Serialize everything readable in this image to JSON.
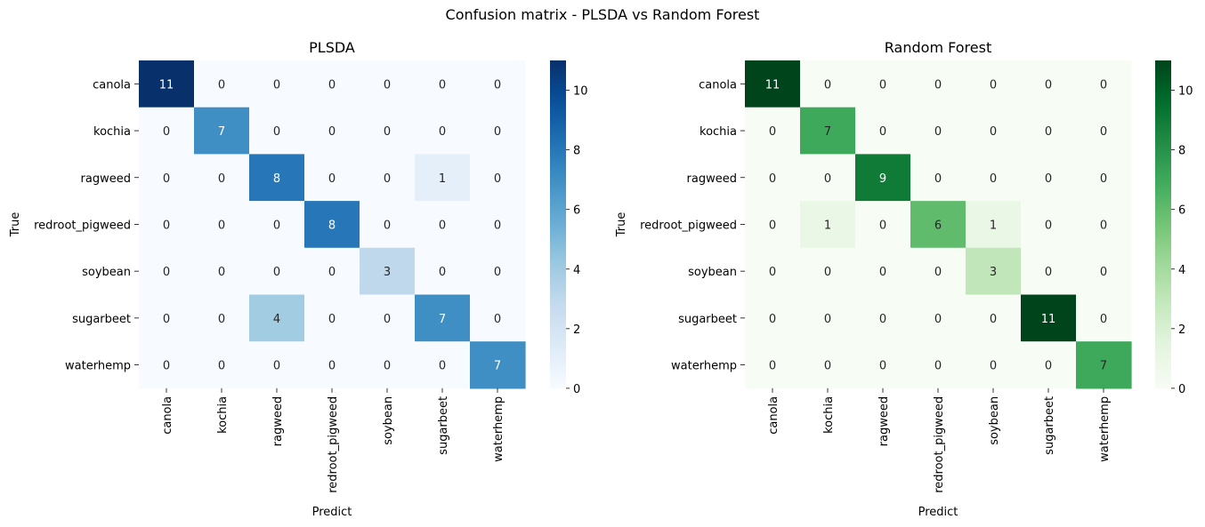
{
  "figure": {
    "suptitle": "Confusion matrix - PLSDA vs Random Forest"
  },
  "chart_data": [
    {
      "type": "heatmap",
      "title": "PLSDA",
      "xlabel": "Predict",
      "ylabel": "True",
      "x_categories": [
        "canola",
        "kochia",
        "ragweed",
        "redroot_pigweed",
        "soybean",
        "sugarbeet",
        "waterhemp"
      ],
      "y_categories": [
        "canola",
        "kochia",
        "ragweed",
        "redroot_pigweed",
        "soybean",
        "sugarbeet",
        "waterhemp"
      ],
      "matrix": [
        [
          11,
          0,
          0,
          0,
          0,
          0,
          0
        ],
        [
          0,
          7,
          0,
          0,
          0,
          0,
          0
        ],
        [
          0,
          0,
          8,
          0,
          0,
          1,
          0
        ],
        [
          0,
          0,
          0,
          8,
          0,
          0,
          0
        ],
        [
          0,
          0,
          0,
          0,
          3,
          0,
          0
        ],
        [
          0,
          0,
          4,
          0,
          0,
          7,
          0
        ],
        [
          0,
          0,
          0,
          0,
          0,
          0,
          7
        ]
      ],
      "colormap": "Blues",
      "colorbar_range": [
        0,
        11
      ],
      "colorbar_ticks": [
        0,
        2,
        4,
        6,
        8,
        10
      ]
    },
    {
      "type": "heatmap",
      "title": "Random Forest",
      "xlabel": "Predict",
      "ylabel": "True",
      "x_categories": [
        "canola",
        "kochia",
        "ragweed",
        "redroot_pigweed",
        "soybean",
        "sugarbeet",
        "waterhemp"
      ],
      "y_categories": [
        "canola",
        "kochia",
        "ragweed",
        "redroot_pigweed",
        "soybean",
        "sugarbeet",
        "waterhemp"
      ],
      "matrix": [
        [
          11,
          0,
          0,
          0,
          0,
          0,
          0
        ],
        [
          0,
          7,
          0,
          0,
          0,
          0,
          0
        ],
        [
          0,
          0,
          9,
          0,
          0,
          0,
          0
        ],
        [
          0,
          1,
          0,
          6,
          1,
          0,
          0
        ],
        [
          0,
          0,
          0,
          0,
          3,
          0,
          0
        ],
        [
          0,
          0,
          0,
          0,
          0,
          11,
          0
        ],
        [
          0,
          0,
          0,
          0,
          0,
          0,
          7
        ]
      ],
      "colormap": "Greens",
      "colorbar_range": [
        0,
        11
      ],
      "colorbar_ticks": [
        0,
        2,
        4,
        6,
        8,
        10
      ]
    }
  ]
}
